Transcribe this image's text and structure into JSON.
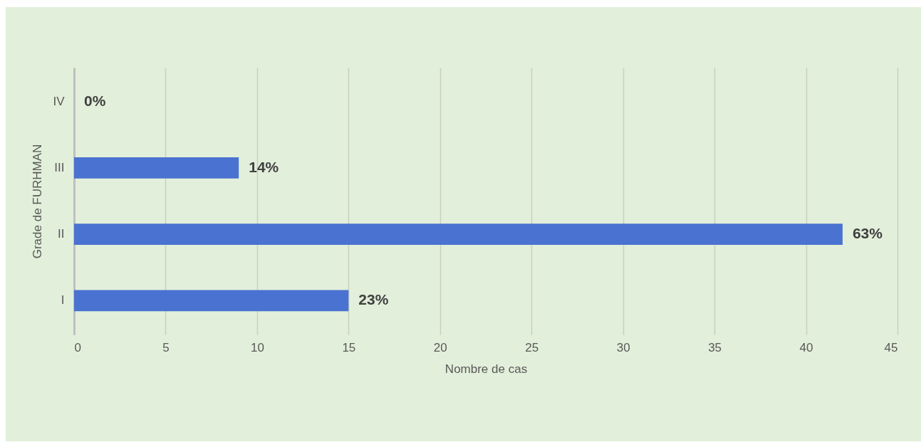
{
  "chart_data": {
    "type": "bar",
    "orientation": "horizontal",
    "xlabel": "Nombre de cas",
    "ylabel": "Grade de FURHMAN",
    "categories": [
      "IV",
      "III",
      "II",
      "I"
    ],
    "values": [
      0,
      9,
      42,
      15
    ],
    "annotations": [
      {
        "text": "0%",
        "x": 0,
        "y": "IV"
      },
      {
        "text": "14%",
        "x": 9,
        "y": "III"
      },
      {
        "text": "63%",
        "x": 42,
        "y": "II"
      },
      {
        "text": "23%",
        "x": 15,
        "y": "I"
      }
    ],
    "color": "#4a72d0",
    "xlim": [
      0,
      45
    ],
    "xticks": [
      0,
      5,
      10,
      15,
      20,
      25,
      30,
      35,
      40,
      45
    ],
    "grid": "x"
  }
}
